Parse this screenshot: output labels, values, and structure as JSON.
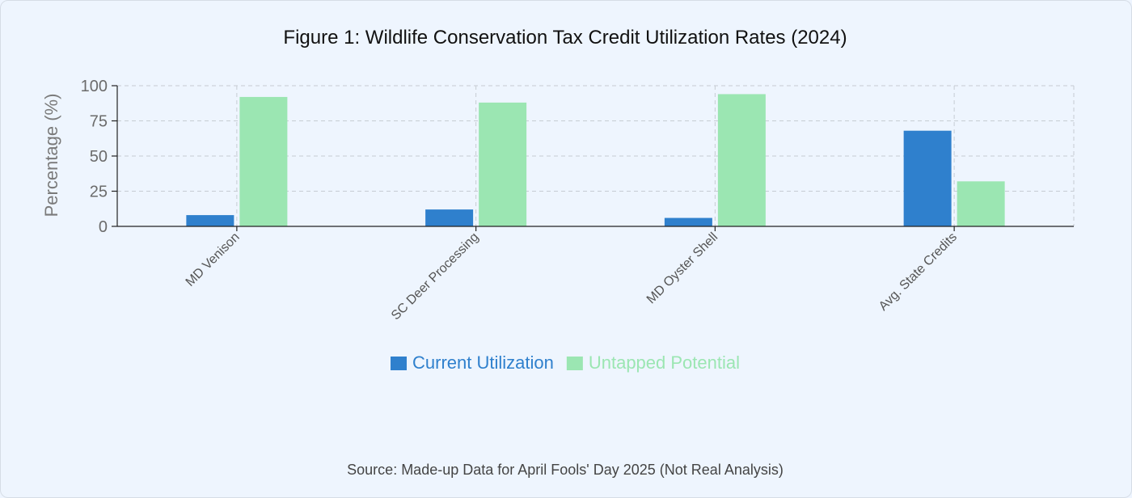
{
  "chart_data": {
    "type": "bar",
    "title": "Figure 1: Wildlife Conservation Tax Credit Utilization Rates (2024)",
    "xlabel": "",
    "ylabel": "Percentage (%)",
    "ylim": [
      0,
      100
    ],
    "yticks": [
      0,
      25,
      50,
      75,
      100
    ],
    "grid": true,
    "legend_position": "bottom-center",
    "categories": [
      "MD Venison",
      "SC Deer Processing",
      "MD Oyster Shell",
      "Avg. State Credits"
    ],
    "series": [
      {
        "name": "Current Utilization",
        "color": "#2f80cd",
        "values": [
          8,
          12,
          6,
          68
        ]
      },
      {
        "name": "Untapped Potential",
        "color": "#9be6b2",
        "values": [
          92,
          88,
          94,
          32
        ]
      }
    ],
    "source": "Source: Made-up Data for April Fools' Day 2025 (Not Real Analysis)"
  }
}
